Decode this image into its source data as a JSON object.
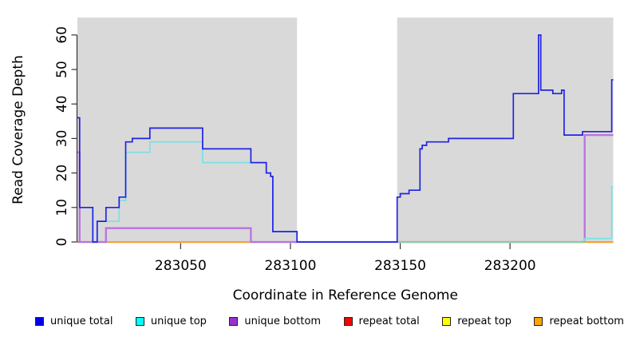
{
  "chart_data": {
    "type": "line",
    "subtype": "step-coverage",
    "title": "",
    "xlabel": "Coordinate in Reference Genome",
    "ylabel": "Read Coverage Depth",
    "xlim": [
      283003,
      283247
    ],
    "ylim": [
      0,
      65
    ],
    "x_ticks": [
      283050,
      283100,
      283150,
      283200
    ],
    "y_ticks": [
      0,
      10,
      20,
      30,
      40,
      50,
      60
    ],
    "grid": "off",
    "legend_position": "bottom",
    "plot_bg": "#ffffff",
    "region_color": "#d9d9d9",
    "axis_color": "#333333",
    "shaded_regions": [
      {
        "x0": 283003,
        "x1": 283103
      },
      {
        "x0": 283148.6,
        "x1": 283247
      }
    ],
    "series": [
      {
        "name": "repeat total",
        "color": "#dd4455",
        "width": 1.5,
        "segments": [
          {
            "points": [
              [
                283003,
                0
              ],
              [
                283103,
                0
              ]
            ]
          }
        ]
      },
      {
        "name": "repeat bottom",
        "color": "#ff9f2e",
        "width": 2,
        "segments": [
          {
            "points": [
              [
                283012,
                0
              ],
              [
                283082,
                0
              ]
            ]
          },
          {
            "points": [
              [
                283234,
                0
              ],
              [
                283247,
                0
              ]
            ],
            "z": 1
          }
        ]
      },
      {
        "name": "unique bottom",
        "color": "#b973e0",
        "width": 2.3,
        "segments": [
          {
            "points": [
              [
                283003,
                26
              ],
              [
                283004,
                0
              ],
              [
                283016,
                4
              ],
              [
                283082,
                0
              ],
              [
                283234,
                31
              ],
              [
                283247,
                31
              ]
            ]
          }
        ]
      },
      {
        "name": "unique top",
        "color": "#77e3e3",
        "width": 1.7,
        "segments": [
          {
            "points": [
              [
                283003,
                10
              ],
              [
                283010,
                0
              ],
              [
                283012,
                6
              ],
              [
                283022,
                12
              ],
              [
                283025,
                26
              ],
              [
                283036,
                29
              ],
              [
                283060,
                23
              ],
              [
                283089,
                20
              ],
              [
                283091,
                19
              ],
              [
                283092,
                3
              ],
              [
                283103,
                0
              ],
              [
                283234,
                1
              ],
              [
                283246.3,
                16
              ],
              [
                283247,
                16
              ]
            ]
          }
        ]
      },
      {
        "name": "repeat top",
        "color": "#8fce8f",
        "width": 1.8,
        "segments": [
          {
            "points": [
              [
                283148.6,
                0
              ],
              [
                283234,
                0
              ]
            ]
          }
        ]
      },
      {
        "name": "unique total",
        "color": "#2222e6",
        "width": 1.7,
        "segments": [
          {
            "points": [
              [
                283003,
                36
              ],
              [
                283004,
                10
              ],
              [
                283010,
                0
              ],
              [
                283012,
                6
              ],
              [
                283016,
                10
              ],
              [
                283022,
                13
              ],
              [
                283025,
                29
              ],
              [
                283028,
                30
              ],
              [
                283036,
                33
              ],
              [
                283060,
                27
              ],
              [
                283082,
                23
              ],
              [
                283089,
                20
              ],
              [
                283091,
                19
              ],
              [
                283092,
                3
              ],
              [
                283103,
                0
              ],
              [
                283148.6,
                13
              ],
              [
                283150,
                14
              ],
              [
                283154,
                15
              ],
              [
                283159,
                27
              ],
              [
                283160,
                28
              ],
              [
                283162,
                29
              ],
              [
                283172,
                30
              ],
              [
                283201.5,
                43
              ],
              [
                283213,
                60
              ],
              [
                283214,
                44
              ],
              [
                283219.5,
                43
              ],
              [
                283223.5,
                44
              ],
              [
                283224.6,
                31
              ],
              [
                283233,
                32
              ],
              [
                283246.3,
                47
              ],
              [
                283247,
                47
              ]
            ]
          }
        ]
      }
    ],
    "legend": [
      {
        "label": "unique total",
        "color": "#0000ee"
      },
      {
        "label": "unique top",
        "color": "#00ffff"
      },
      {
        "label": "unique bottom",
        "color": "#9932cc"
      },
      {
        "label": "repeat total",
        "color": "#ff0000"
      },
      {
        "label": "repeat top",
        "color": "#ffff00"
      },
      {
        "label": "repeat bottom",
        "color": "#ffa500"
      }
    ]
  }
}
